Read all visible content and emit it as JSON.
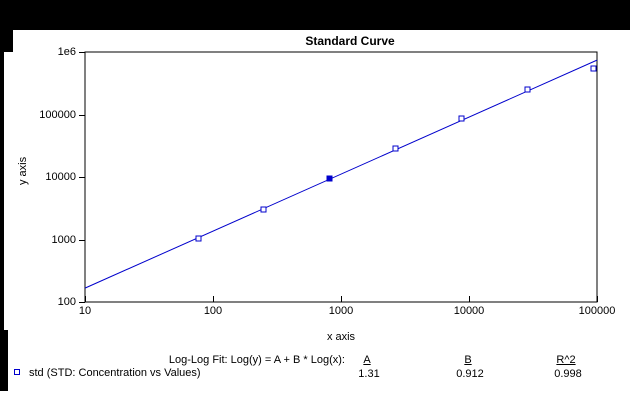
{
  "window": {
    "background": "#000000",
    "panel_background": "#ffffff"
  },
  "chart": {
    "title": "Standard Curve",
    "x_axis_label": "x axis",
    "y_axis_label": "y axis"
  },
  "chart_data": {
    "type": "scatter",
    "title": "Standard Curve",
    "xlabel": "x axis",
    "ylabel": "y axis",
    "x_scale": "log",
    "y_scale": "log",
    "xlim": [
      10,
      100000
    ],
    "ylim": [
      100,
      1000000
    ],
    "grid": false,
    "x_ticks": [
      {
        "value": 10,
        "label": "10"
      },
      {
        "value": 100,
        "label": "100"
      },
      {
        "value": 1000,
        "label": "1000"
      },
      {
        "value": 10000,
        "label": "10000"
      },
      {
        "value": 100000,
        "label": "100000"
      }
    ],
    "y_ticks": [
      {
        "value": 100,
        "label": "100"
      },
      {
        "value": 1000,
        "label": "1000"
      },
      {
        "value": 10000,
        "label": "10000"
      },
      {
        "value": 100000,
        "label": "100000"
      },
      {
        "value": 1000000,
        "label": "1e6"
      }
    ],
    "series": [
      {
        "name": "std (STD: Concentration vs Values)",
        "marker": "open-square",
        "color": "#0000cc",
        "points": [
          {
            "x": 76,
            "y": 1060,
            "filled": false
          },
          {
            "x": 246,
            "y": 3080,
            "filled": false
          },
          {
            "x": 805,
            "y": 9650,
            "filled": true
          },
          {
            "x": 2640,
            "y": 29100,
            "filled": false
          },
          {
            "x": 8660,
            "y": 87900,
            "filled": false
          },
          {
            "x": 28400,
            "y": 256000,
            "filled": false
          },
          {
            "x": 93100,
            "y": 555000,
            "filled": false
          }
        ]
      }
    ],
    "fit": {
      "type": "log-log-linear",
      "equation": "Log-Log Fit: Log(y) = A + B * Log(x):",
      "A": 1.31,
      "B": 0.912,
      "R2": 0.998,
      "color": "#0000cc"
    }
  },
  "legend": {
    "equation_label": "Log-Log Fit: Log(y) = A + B * Log(x):",
    "col_A": "A",
    "col_B": "B",
    "col_R2": "R^2",
    "series_label": "std (STD: Concentration vs Values)",
    "A_value": "1.31",
    "B_value": "0.912",
    "R2_value": "0.998"
  },
  "colors": {
    "series_blue": "#0000cc",
    "axis_black": "#000000",
    "background_black": "#000000",
    "panel_white": "#ffffff"
  }
}
